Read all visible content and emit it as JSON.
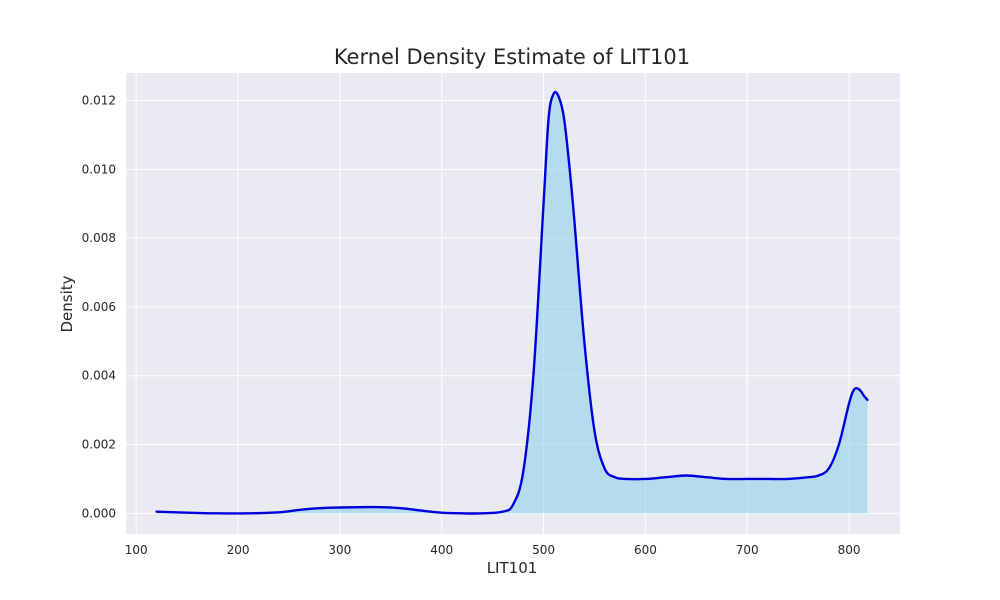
{
  "chart_data": {
    "type": "area",
    "title": "Kernel Density Estimate of LIT101",
    "xlabel": "LIT101",
    "ylabel": "Density",
    "xlim": [
      90,
      850
    ],
    "ylim": [
      -0.0006,
      0.0128
    ],
    "x_ticks": [
      100,
      200,
      300,
      400,
      500,
      600,
      700,
      800
    ],
    "y_ticks": [
      0.0,
      0.002,
      0.004,
      0.006,
      0.008,
      0.01,
      0.012
    ],
    "x_tick_labels": [
      "100",
      "200",
      "300",
      "400",
      "500",
      "600",
      "700",
      "800"
    ],
    "y_tick_labels": [
      "0.000",
      "0.002",
      "0.004",
      "0.006",
      "0.008",
      "0.010",
      "0.012"
    ],
    "grid": true,
    "style": "seaborn-darkgrid",
    "colors": {
      "line": "#0000dd",
      "fill": "#87ceeb",
      "plot_background": "#eaeaf2",
      "grid": "#ffffff"
    },
    "series": [
      {
        "x": [
          120,
          150,
          180,
          210,
          240,
          260,
          280,
          300,
          320,
          340,
          360,
          380,
          400,
          420,
          440,
          460,
          470,
          480,
          490,
          500,
          505,
          510,
          515,
          520,
          525,
          530,
          540,
          550,
          560,
          570,
          580,
          600,
          620,
          640,
          660,
          680,
          700,
          720,
          740,
          760,
          770,
          780,
          790,
          800,
          805,
          810,
          815,
          818
        ],
        "y": [
          5e-05,
          2e-05,
          0.0,
          0.0,
          3e-05,
          0.0001,
          0.00015,
          0.00017,
          0.00018,
          0.00018,
          0.00015,
          8e-05,
          2e-05,
          0.0,
          0.0,
          5e-05,
          0.00025,
          0.0012,
          0.004,
          0.009,
          0.0115,
          0.0122,
          0.0121,
          0.0115,
          0.0102,
          0.0086,
          0.005,
          0.0024,
          0.0013,
          0.00105,
          0.001,
          0.001,
          0.00105,
          0.0011,
          0.00105,
          0.001,
          0.001,
          0.001,
          0.001,
          0.00105,
          0.0011,
          0.0013,
          0.002,
          0.0032,
          0.0036,
          0.0036,
          0.0034,
          0.0033
        ]
      }
    ]
  }
}
